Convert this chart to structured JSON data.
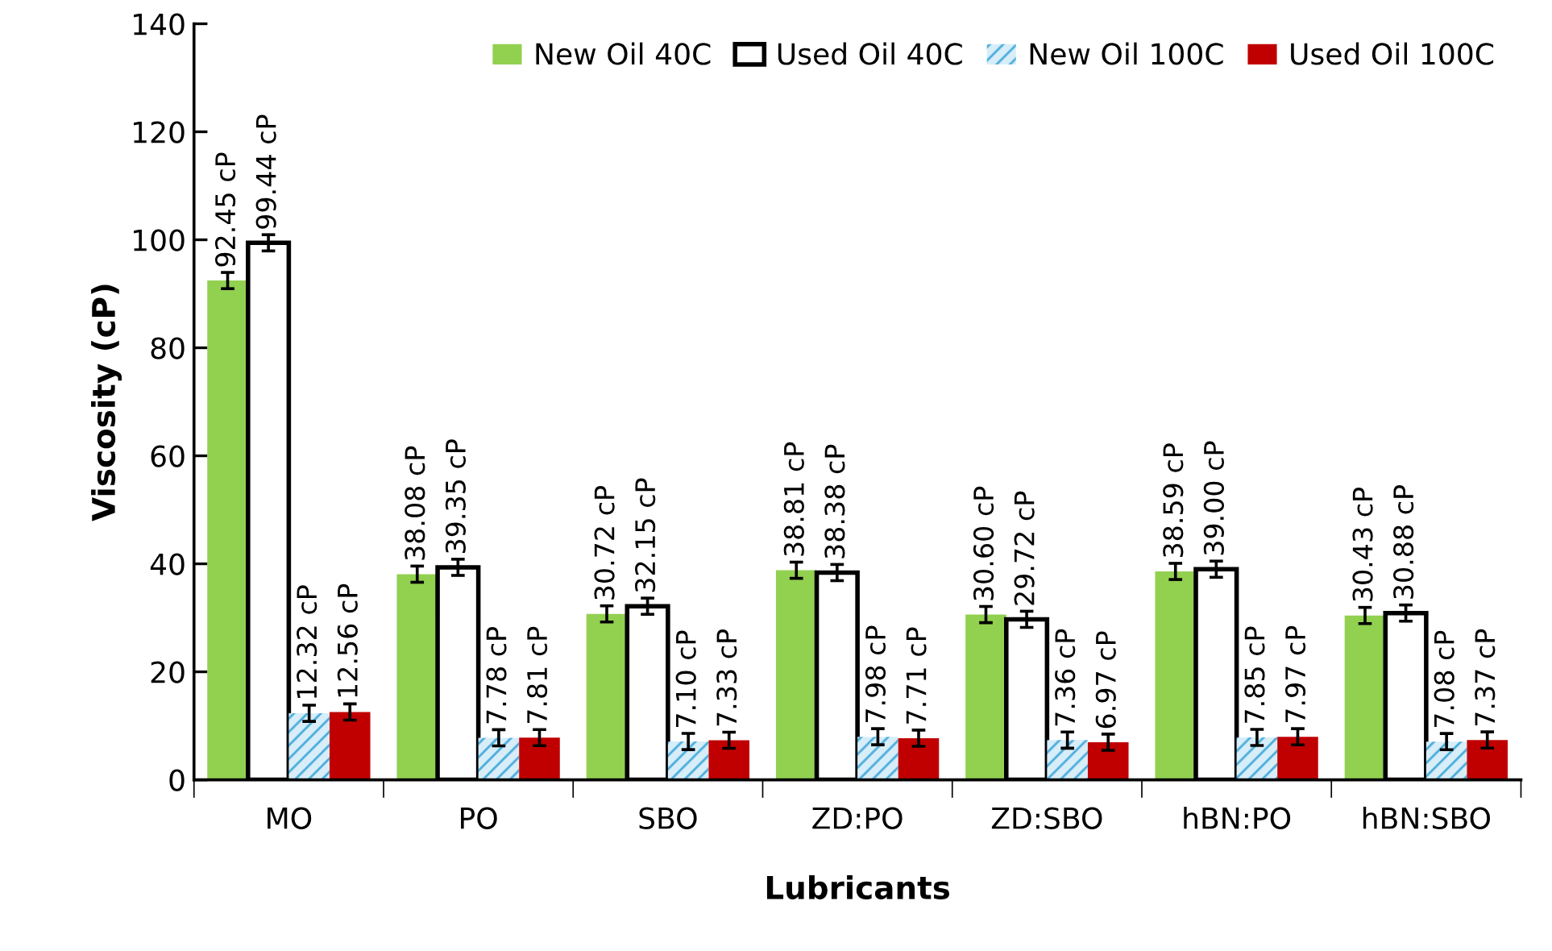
{
  "chart_data": {
    "type": "bar",
    "xlabel": "Lubricants",
    "ylabel": "Viscosity (cP)",
    "categories": [
      "MO",
      "PO",
      "SBO",
      "ZD:PO",
      "ZD:SBO",
      "hBN:PO",
      "hBN:SBO"
    ],
    "ylim": [
      0,
      140
    ],
    "yticks": [
      0,
      20,
      40,
      60,
      80,
      100,
      120,
      140
    ],
    "grid": false,
    "legend": "top right",
    "series": [
      {
        "name": "New Oil 40C",
        "color": "#92d050",
        "values": [
          92.45,
          38.08,
          30.72,
          38.81,
          30.6,
          38.59,
          30.43
        ],
        "errors": [
          1.5,
          1.5,
          1.5,
          1.5,
          1.5,
          1.5,
          1.5
        ],
        "value_labels": [
          "92.45 cP",
          "38.08 cP",
          "30.72 cP",
          "38.81 cP",
          "30.60 cP",
          "38.59 cP",
          "30.43 cP"
        ]
      },
      {
        "name": "Used Oil 40C",
        "color": "#ffffff",
        "values": [
          99.44,
          39.35,
          32.15,
          38.38,
          29.72,
          39.0,
          30.88
        ],
        "errors": [
          1.5,
          1.5,
          1.5,
          1.5,
          1.5,
          1.5,
          1.5
        ],
        "value_labels": [
          "99.44 cP",
          "39.35 cP",
          "32.15 cP",
          "38.38 cP",
          "29.72 cP",
          "39.00 cP",
          "30.88 cP"
        ]
      },
      {
        "name": "New Oil 100C",
        "color": "#4bacdc",
        "values": [
          12.32,
          7.78,
          7.1,
          7.98,
          7.36,
          7.85,
          7.08
        ],
        "errors": [
          1.5,
          1.5,
          1.5,
          1.5,
          1.5,
          1.5,
          1.5
        ],
        "value_labels": [
          "12.32 cP",
          "7.78 cP",
          "7.10 cP",
          "7.98 cP",
          "7.36 cP",
          "7.85 cP",
          "7.08 cP"
        ]
      },
      {
        "name": "Used Oil 100C",
        "color": "#c00000",
        "values": [
          12.56,
          7.81,
          7.33,
          7.71,
          6.97,
          7.97,
          7.37
        ],
        "errors": [
          1.5,
          1.5,
          1.5,
          1.5,
          1.5,
          1.5,
          1.5
        ],
        "value_labels": [
          "12.56 cP",
          "7.81 cP",
          "7.33 cP",
          "7.71 cP",
          "6.97 cP",
          "7.97 cP",
          "7.37 cP"
        ]
      }
    ]
  }
}
